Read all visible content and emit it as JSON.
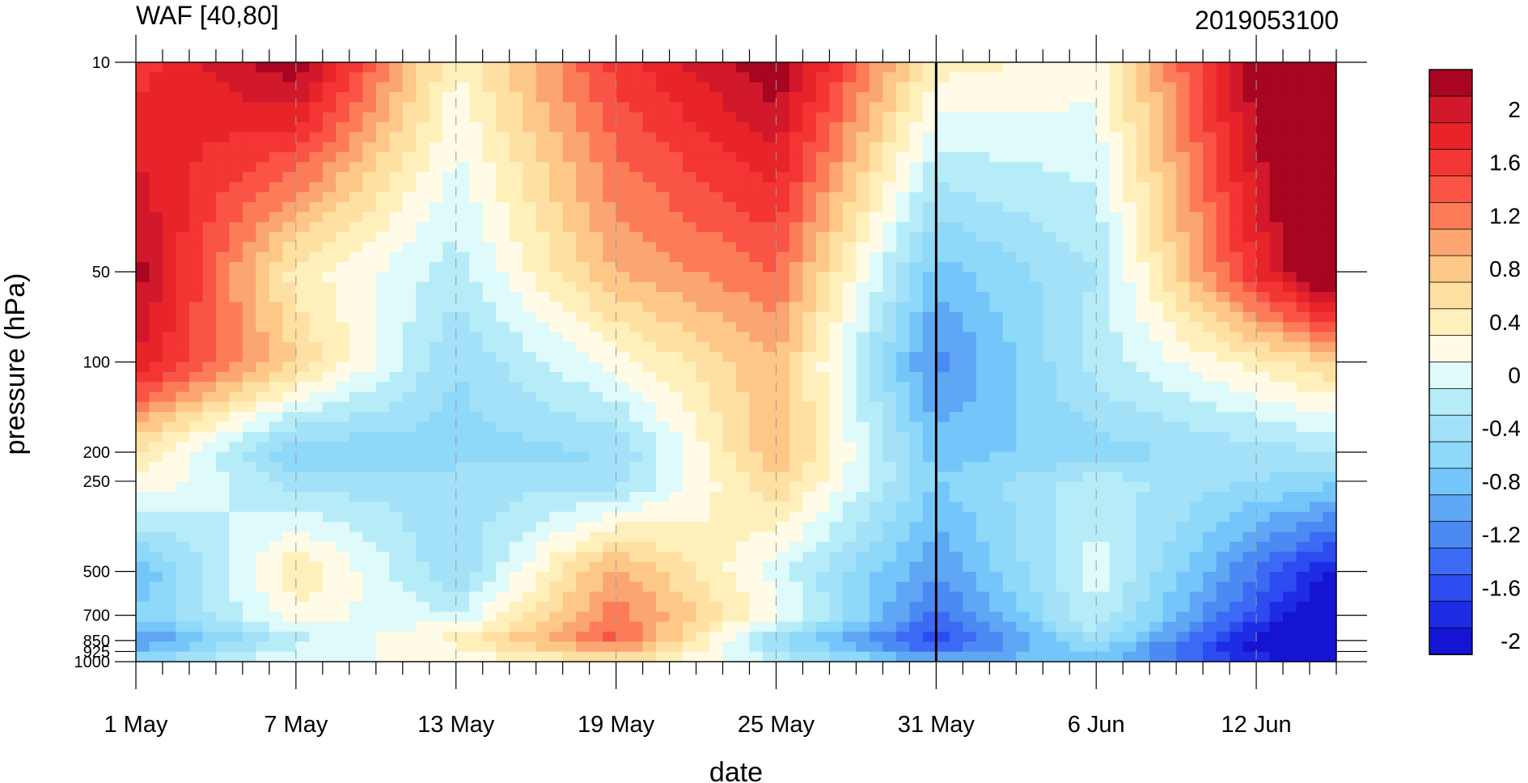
{
  "chart_data": {
    "type": "heatmap",
    "title_left": "WAF [40,80]",
    "title_right": "2019053100",
    "xlabel": "date",
    "ylabel": "pressure (hPa)",
    "x_start": "1 May",
    "x_end": "15 Jun",
    "x_ticks": [
      "1 May",
      "7 May",
      "13 May",
      "19 May",
      "25 May",
      "31 May",
      "6 Jun",
      "12 Jun"
    ],
    "marker_date": "31 May",
    "y_scale": "log",
    "y_reversed": true,
    "y_ticks": [
      10,
      50,
      100,
      200,
      250,
      500,
      700,
      850,
      925,
      1000
    ],
    "y_tick_labels": [
      "10",
      "50",
      "100",
      "200",
      "250",
      "500",
      "700",
      "850",
      "925",
      "1000"
    ],
    "colorbar": {
      "levels": [
        -2.2,
        -2.0,
        -1.8,
        -1.6,
        -1.4,
        -1.2,
        -1.0,
        -0.8,
        -0.6,
        -0.4,
        -0.2,
        0.0,
        0.2,
        0.4,
        0.6,
        0.8,
        1.0,
        1.2,
        1.4,
        1.6,
        1.8,
        2.0,
        2.2
      ],
      "colors": [
        "#1414d2",
        "#1f2ce6",
        "#2d4cf0",
        "#3c6af5",
        "#4c8af3",
        "#5fa6f5",
        "#74c6fa",
        "#8ed8f9",
        "#a2e1f8",
        "#b6ecf8",
        "#dffafa",
        "#fffbe6",
        "#fff0bb",
        "#ffe0a3",
        "#fdc887",
        "#fba672",
        "#fd7c58",
        "#f95445",
        "#f33534",
        "#e82429",
        "#d2192b",
        "#a80521"
      ],
      "tick_labels": [
        "2",
        "1.6",
        "1.2",
        "0.8",
        "0.4",
        "0",
        "-0.4",
        "-0.8",
        "-1.2",
        "-1.6",
        "-2"
      ]
    },
    "pressure_levels": [
      10,
      50,
      100,
      200,
      250,
      500,
      700,
      850,
      925,
      1000
    ],
    "days": [
      1,
      7,
      13,
      19,
      25,
      31,
      37,
      43
    ],
    "values": [
      [
        1.5,
        2.2,
        0.2,
        1.5,
        2.2,
        0.3,
        0.1,
        2.2
      ],
      [
        2.1,
        0.3,
        -0.3,
        0.8,
        1.2,
        -0.9,
        -0.4,
        1.6
      ],
      [
        1.8,
        0.6,
        -0.6,
        0.1,
        0.8,
        -1.3,
        -0.3,
        0.3
      ],
      [
        0.4,
        -0.8,
        -0.7,
        -0.6,
        0.8,
        -0.9,
        -0.7,
        -0.5
      ],
      [
        0.2,
        -0.5,
        -0.5,
        -0.5,
        0.6,
        -0.8,
        -0.3,
        -0.6
      ],
      [
        -1.0,
        0.4,
        -0.6,
        0.9,
        -0.1,
        -1.2,
        -0.1,
        -1.4
      ],
      [
        -0.8,
        0.1,
        -0.2,
        1.1,
        0.1,
        -1.5,
        -0.2,
        -1.7
      ],
      [
        -1.3,
        -0.3,
        0.3,
        1.3,
        -0.6,
        -1.7,
        -0.5,
        -2.1
      ],
      [
        -0.9,
        -0.1,
        0.1,
        0.8,
        -0.4,
        -1.4,
        -0.8,
        -2.1
      ],
      [
        -0.6,
        0.0,
        0.0,
        0.4,
        -0.2,
        -1.0,
        -0.8,
        -1.8
      ]
    ]
  }
}
